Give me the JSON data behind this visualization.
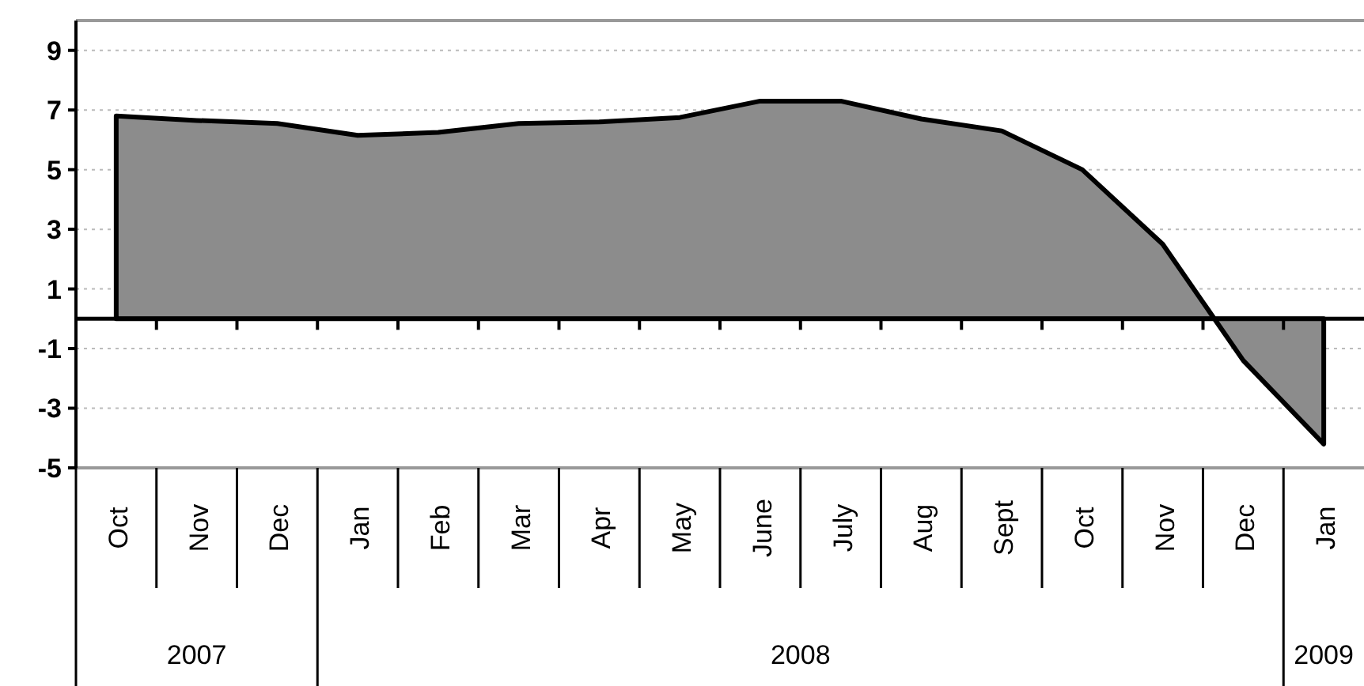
{
  "chart_data": {
    "type": "area",
    "categories": [
      "Oct",
      "Nov",
      "Dec",
      "Jan",
      "Feb",
      "Mar",
      "Apr",
      "May",
      "June",
      "July",
      "Aug",
      "Sept",
      "Oct",
      "Nov",
      "Dec",
      "Jan"
    ],
    "values": [
      6.8,
      6.65,
      6.55,
      6.15,
      6.25,
      6.55,
      6.6,
      6.75,
      7.3,
      7.3,
      6.7,
      6.3,
      5.0,
      2.5,
      -1.4,
      -4.2
    ],
    "color": "#8c8c8c",
    "ylim": [
      -5,
      10
    ],
    "yticks": [
      -5,
      -3,
      -1,
      1,
      3,
      5,
      7,
      9
    ],
    "grid": "y",
    "annotations": [
      "2007",
      "2008",
      "2009"
    ]
  }
}
